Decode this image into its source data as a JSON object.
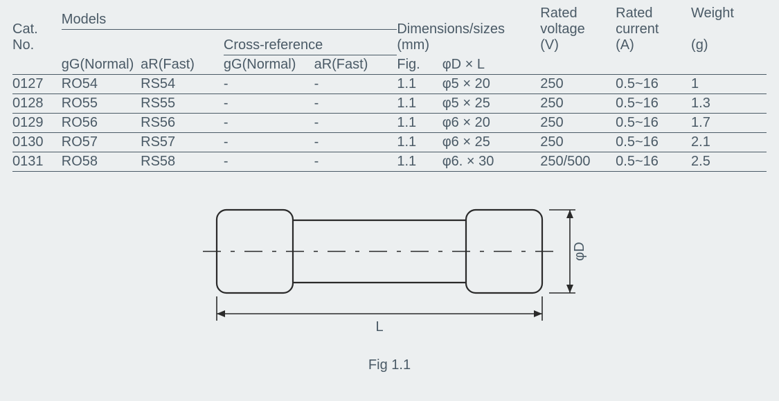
{
  "table": {
    "header": {
      "cat_no": "Cat.\nNo.",
      "models": "Models",
      "cross_ref": "Cross-reference",
      "gg_normal": "gG(Normal)",
      "ar_fast": "aR(Fast)",
      "gg_normal2": "gG(Normal)",
      "ar_fast2": "aR(Fast)",
      "dimensions": "Dimensions/sizes\n(mm)",
      "fig": "Fig.",
      "dxL": "φD × L",
      "voltage": "Rated\nvoltage\n(V)",
      "current": "Rated\ncurrent\n(A)",
      "weight": "Weight\n\n(g)"
    },
    "rows": [
      {
        "cat": "0127",
        "gg": "RO54",
        "ar": "RS54",
        "cgg": "-",
        "car": "-",
        "fig": "1.1",
        "dxl": "φ5 × 20",
        "v": "250",
        "a": "0.5~16",
        "w": "1"
      },
      {
        "cat": "0128",
        "gg": "RO55",
        "ar": "RS55",
        "cgg": "-",
        "car": "-",
        "fig": "1.1",
        "dxl": "φ5 × 25",
        "v": "250",
        "a": "0.5~16",
        "w": "1.3"
      },
      {
        "cat": "0129",
        "gg": "RO56",
        "ar": "RS56",
        "cgg": "-",
        "car": "-",
        "fig": "1.1",
        "dxl": "φ6 × 20",
        "v": "250",
        "a": "0.5~16",
        "w": "1.7"
      },
      {
        "cat": "0130",
        "gg": "RO57",
        "ar": "RS57",
        "cgg": "-",
        "car": "-",
        "fig": "1.1",
        "dxl": "φ6 × 25",
        "v": "250",
        "a": "0.5~16",
        "w": "2.1"
      },
      {
        "cat": "0131",
        "gg": "RO58",
        "ar": "RS58",
        "cgg": "-",
        "car": "-",
        "fig": "1.1",
        "dxl": "φ6. × 30",
        "v": "250/500",
        "a": "0.5~16",
        "w": "2.5"
      }
    ],
    "col_widths_pct": [
      6.5,
      10.5,
      11,
      12,
      11,
      6,
      13,
      10,
      10,
      10
    ]
  },
  "figure": {
    "caption": "Fig 1.1",
    "label_L": "L",
    "label_D": "φD"
  },
  "colors": {
    "background": "#eceff0",
    "text": "#4a5a66",
    "rule": "#4a5a66",
    "stroke": "#2a2a2a"
  }
}
